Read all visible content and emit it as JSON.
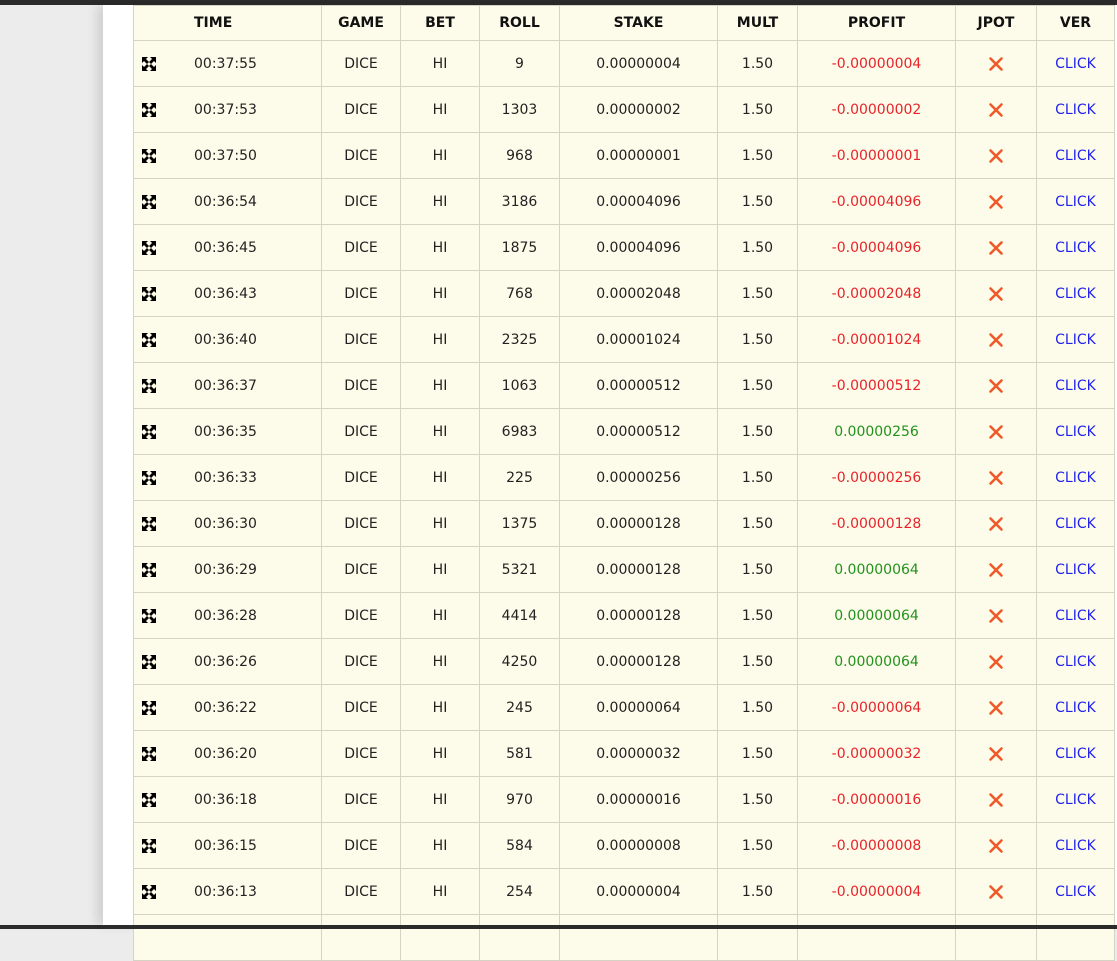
{
  "headers": {
    "time": "TIME",
    "game": "GAME",
    "bet": "BET",
    "roll": "ROLL",
    "stake": "STAKE",
    "mult": "MULT",
    "profit": "PROFIT",
    "jpot": "JPOT",
    "ver": "VER"
  },
  "icons": {
    "row_expand": "expand-arrows-icon",
    "jackpot": "close-x-icon"
  },
  "colors": {
    "loss": "#e8232a",
    "win": "#22921c",
    "link": "#2222ee",
    "jackpot_x": "#f05a28",
    "table_bg": "#fdfcea"
  },
  "rows": [
    {
      "time": "00:37:55",
      "game": "DICE",
      "bet": "HI",
      "roll": "9",
      "stake": "0.00000004",
      "mult": "1.50",
      "profit": "-0.00000004",
      "outcome": "loss",
      "ver": "CLICK"
    },
    {
      "time": "00:37:53",
      "game": "DICE",
      "bet": "HI",
      "roll": "1303",
      "stake": "0.00000002",
      "mult": "1.50",
      "profit": "-0.00000002",
      "outcome": "loss",
      "ver": "CLICK"
    },
    {
      "time": "00:37:50",
      "game": "DICE",
      "bet": "HI",
      "roll": "968",
      "stake": "0.00000001",
      "mult": "1.50",
      "profit": "-0.00000001",
      "outcome": "loss",
      "ver": "CLICK"
    },
    {
      "time": "00:36:54",
      "game": "DICE",
      "bet": "HI",
      "roll": "3186",
      "stake": "0.00004096",
      "mult": "1.50",
      "profit": "-0.00004096",
      "outcome": "loss",
      "ver": "CLICK"
    },
    {
      "time": "00:36:45",
      "game": "DICE",
      "bet": "HI",
      "roll": "1875",
      "stake": "0.00004096",
      "mult": "1.50",
      "profit": "-0.00004096",
      "outcome": "loss",
      "ver": "CLICK"
    },
    {
      "time": "00:36:43",
      "game": "DICE",
      "bet": "HI",
      "roll": "768",
      "stake": "0.00002048",
      "mult": "1.50",
      "profit": "-0.00002048",
      "outcome": "loss",
      "ver": "CLICK"
    },
    {
      "time": "00:36:40",
      "game": "DICE",
      "bet": "HI",
      "roll": "2325",
      "stake": "0.00001024",
      "mult": "1.50",
      "profit": "-0.00001024",
      "outcome": "loss",
      "ver": "CLICK"
    },
    {
      "time": "00:36:37",
      "game": "DICE",
      "bet": "HI",
      "roll": "1063",
      "stake": "0.00000512",
      "mult": "1.50",
      "profit": "-0.00000512",
      "outcome": "loss",
      "ver": "CLICK"
    },
    {
      "time": "00:36:35",
      "game": "DICE",
      "bet": "HI",
      "roll": "6983",
      "stake": "0.00000512",
      "mult": "1.50",
      "profit": "0.00000256",
      "outcome": "win",
      "ver": "CLICK"
    },
    {
      "time": "00:36:33",
      "game": "DICE",
      "bet": "HI",
      "roll": "225",
      "stake": "0.00000256",
      "mult": "1.50",
      "profit": "-0.00000256",
      "outcome": "loss",
      "ver": "CLICK"
    },
    {
      "time": "00:36:30",
      "game": "DICE",
      "bet": "HI",
      "roll": "1375",
      "stake": "0.00000128",
      "mult": "1.50",
      "profit": "-0.00000128",
      "outcome": "loss",
      "ver": "CLICK"
    },
    {
      "time": "00:36:29",
      "game": "DICE",
      "bet": "HI",
      "roll": "5321",
      "stake": "0.00000128",
      "mult": "1.50",
      "profit": "0.00000064",
      "outcome": "win",
      "ver": "CLICK"
    },
    {
      "time": "00:36:28",
      "game": "DICE",
      "bet": "HI",
      "roll": "4414",
      "stake": "0.00000128",
      "mult": "1.50",
      "profit": "0.00000064",
      "outcome": "win",
      "ver": "CLICK"
    },
    {
      "time": "00:36:26",
      "game": "DICE",
      "bet": "HI",
      "roll": "4250",
      "stake": "0.00000128",
      "mult": "1.50",
      "profit": "0.00000064",
      "outcome": "win",
      "ver": "CLICK"
    },
    {
      "time": "00:36:22",
      "game": "DICE",
      "bet": "HI",
      "roll": "245",
      "stake": "0.00000064",
      "mult": "1.50",
      "profit": "-0.00000064",
      "outcome": "loss",
      "ver": "CLICK"
    },
    {
      "time": "00:36:20",
      "game": "DICE",
      "bet": "HI",
      "roll": "581",
      "stake": "0.00000032",
      "mult": "1.50",
      "profit": "-0.00000032",
      "outcome": "loss",
      "ver": "CLICK"
    },
    {
      "time": "00:36:18",
      "game": "DICE",
      "bet": "HI",
      "roll": "970",
      "stake": "0.00000016",
      "mult": "1.50",
      "profit": "-0.00000016",
      "outcome": "loss",
      "ver": "CLICK"
    },
    {
      "time": "00:36:15",
      "game": "DICE",
      "bet": "HI",
      "roll": "584",
      "stake": "0.00000008",
      "mult": "1.50",
      "profit": "-0.00000008",
      "outcome": "loss",
      "ver": "CLICK"
    },
    {
      "time": "00:36:13",
      "game": "DICE",
      "bet": "HI",
      "roll": "254",
      "stake": "0.00000004",
      "mult": "1.50",
      "profit": "-0.00000004",
      "outcome": "loss",
      "ver": "CLICK"
    }
  ]
}
